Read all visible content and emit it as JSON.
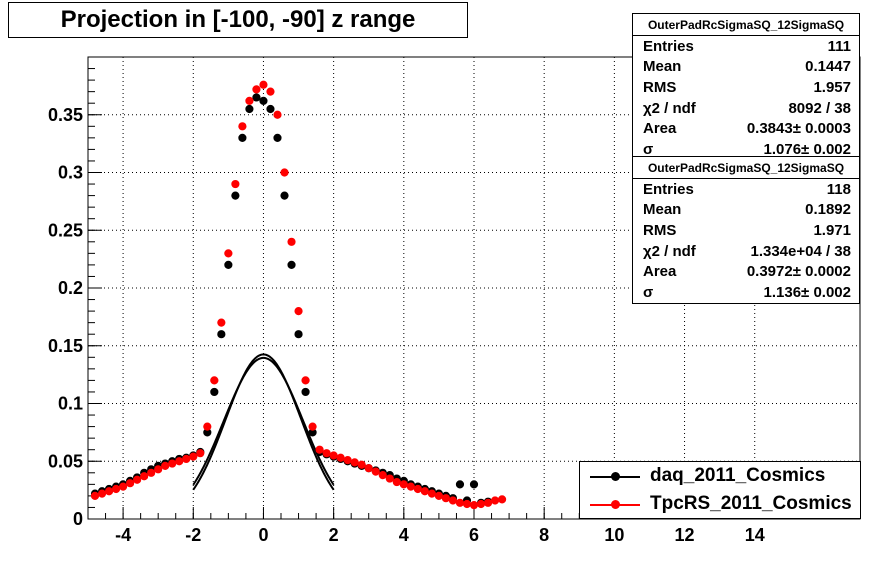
{
  "title": "Projection in [-100, -90] z range",
  "stats": [
    {
      "title": "OuterPadRcSigmaSQ_12SigmaSQ",
      "rows": [
        {
          "label": "Entries",
          "value": "111"
        },
        {
          "label": "Mean",
          "value": "0.1447"
        },
        {
          "label": "RMS",
          "value": "1.957"
        },
        {
          "label": "χ2 / ndf",
          "value": "8092 / 38"
        },
        {
          "label": "Area",
          "value": "0.3843± 0.0003"
        },
        {
          "label": "σ",
          "value": "1.076± 0.002"
        }
      ]
    },
    {
      "title": "OuterPadRcSigmaSQ_12SigmaSQ",
      "rows": [
        {
          "label": "Entries",
          "value": "118"
        },
        {
          "label": "Mean",
          "value": "0.1892"
        },
        {
          "label": "RMS",
          "value": "1.971"
        },
        {
          "label": "χ2 / ndf",
          "value": "1.334e+04 / 38"
        },
        {
          "label": "Area",
          "value": "0.3972± 0.0002"
        },
        {
          "label": "σ",
          "value": "1.136± 0.002"
        }
      ]
    }
  ],
  "legend": [
    {
      "label": "daq_2011_Cosmics",
      "color": "#000000"
    },
    {
      "label": "TpcRS_2011_Cosmics",
      "color": "#ff0000"
    }
  ],
  "chart_data": {
    "type": "scatter",
    "title": "Projection in [-100, -90] z range",
    "xlim": [
      -5,
      17
    ],
    "ylim": [
      0,
      0.4
    ],
    "x_ticks": [
      "-4",
      "-2",
      "0",
      "2",
      "4",
      "6",
      "8",
      "10",
      "12",
      "14"
    ],
    "y_ticks": [
      "0",
      "0.05",
      "0.1",
      "0.15",
      "0.2",
      "0.25",
      "0.3",
      "0.35"
    ],
    "grid": true,
    "legend_position": "bottom-right",
    "series": [
      {
        "name": "daq_2011_Cosmics",
        "color": "#000000",
        "x": [
          -4.8,
          -4.6,
          -4.4,
          -4.2,
          -4.0,
          -3.8,
          -3.6,
          -3.4,
          -3.2,
          -3.0,
          -2.8,
          -2.6,
          -2.4,
          -2.2,
          -2.0,
          -1.8,
          -1.6,
          -1.4,
          -1.2,
          -1.0,
          -0.8,
          -0.6,
          -0.4,
          -0.2,
          0.0,
          0.2,
          0.4,
          0.6,
          0.8,
          1.0,
          1.2,
          1.4,
          1.6,
          1.8,
          2.0,
          2.2,
          2.4,
          2.6,
          2.8,
          3.0,
          3.2,
          3.4,
          3.6,
          3.8,
          4.0,
          4.2,
          4.4,
          4.6,
          4.8,
          5.0,
          5.2,
          5.4,
          5.6,
          5.8,
          6.0,
          6.2,
          6.4
        ],
        "y": [
          0.022,
          0.024,
          0.026,
          0.028,
          0.03,
          0.033,
          0.036,
          0.04,
          0.043,
          0.046,
          0.048,
          0.05,
          0.052,
          0.053,
          0.055,
          0.058,
          0.075,
          0.11,
          0.16,
          0.22,
          0.28,
          0.33,
          0.355,
          0.365,
          0.362,
          0.355,
          0.33,
          0.28,
          0.22,
          0.16,
          0.11,
          0.075,
          0.058,
          0.056,
          0.054,
          0.052,
          0.05,
          0.048,
          0.046,
          0.044,
          0.042,
          0.04,
          0.038,
          0.035,
          0.033,
          0.03,
          0.028,
          0.026,
          0.024,
          0.022,
          0.02,
          0.018,
          0.03,
          0.016,
          0.03,
          0.014,
          0.015
        ]
      },
      {
        "name": "TpcRS_2011_Cosmics",
        "color": "#ff0000",
        "x": [
          -4.8,
          -4.6,
          -4.4,
          -4.2,
          -4.0,
          -3.8,
          -3.6,
          -3.4,
          -3.2,
          -3.0,
          -2.8,
          -2.6,
          -2.4,
          -2.2,
          -2.0,
          -1.8,
          -1.6,
          -1.4,
          -1.2,
          -1.0,
          -0.8,
          -0.6,
          -0.4,
          -0.2,
          0.0,
          0.2,
          0.4,
          0.6,
          0.8,
          1.0,
          1.2,
          1.4,
          1.6,
          1.8,
          2.0,
          2.2,
          2.4,
          2.6,
          2.8,
          3.0,
          3.2,
          3.4,
          3.6,
          3.8,
          4.0,
          4.2,
          4.4,
          4.6,
          4.8,
          5.0,
          5.2,
          5.4,
          5.6,
          5.8,
          6.0,
          6.2,
          6.4,
          6.6,
          6.8
        ],
        "y": [
          0.02,
          0.022,
          0.024,
          0.026,
          0.028,
          0.031,
          0.034,
          0.037,
          0.04,
          0.043,
          0.046,
          0.048,
          0.05,
          0.052,
          0.054,
          0.057,
          0.08,
          0.12,
          0.17,
          0.23,
          0.29,
          0.34,
          0.362,
          0.372,
          0.376,
          0.37,
          0.35,
          0.3,
          0.24,
          0.18,
          0.12,
          0.08,
          0.06,
          0.057,
          0.055,
          0.053,
          0.051,
          0.049,
          0.047,
          0.044,
          0.041,
          0.038,
          0.035,
          0.032,
          0.03,
          0.028,
          0.026,
          0.024,
          0.022,
          0.02,
          0.018,
          0.016,
          0.014,
          0.013,
          0.012,
          0.013,
          0.014,
          0.016,
          0.017
        ]
      }
    ],
    "fits": [
      {
        "series": "daq_2011_Cosmics",
        "function": "gaus",
        "area": 0.3843,
        "sigma": 1.076,
        "x_range": [
          -2,
          2
        ],
        "color": "#000000"
      },
      {
        "series": "TpcRS_2011_Cosmics",
        "function": "gaus",
        "area": 0.3972,
        "sigma": 1.136,
        "x_range": [
          -2,
          2
        ],
        "color": "#000000"
      }
    ]
  }
}
